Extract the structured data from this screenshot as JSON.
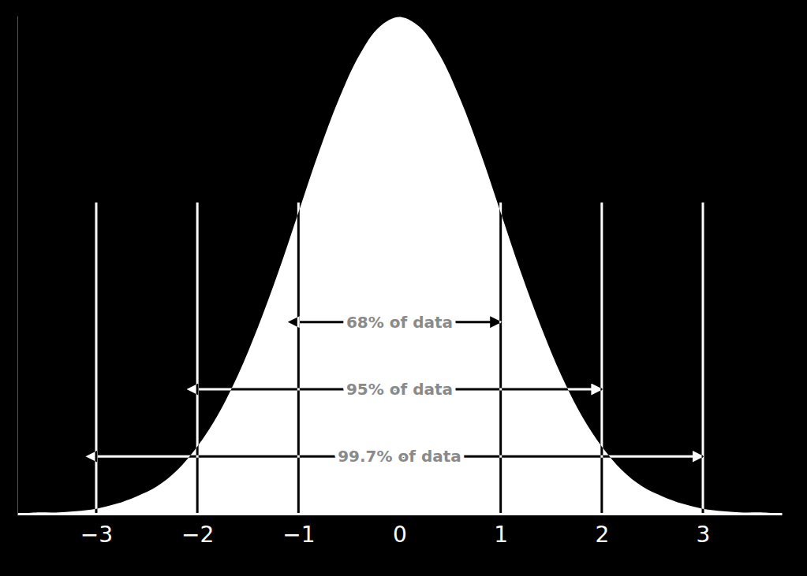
{
  "chart_data": {
    "type": "area",
    "x": [
      -3.8,
      -3.6,
      -3.4,
      -3.2,
      -3.0,
      -2.8,
      -2.6,
      -2.4,
      -2.2,
      -2.0,
      -1.8,
      -1.6,
      -1.4,
      -1.2,
      -1.0,
      -0.8,
      -0.6,
      -0.4,
      -0.2,
      0,
      0.2,
      0.4,
      0.6,
      0.8,
      1.0,
      1.2,
      1.4,
      1.6,
      1.8,
      2.0,
      2.2,
      2.4,
      2.6,
      2.8,
      3.0,
      3.2,
      3.4,
      3.6,
      3.8
    ],
    "values": [
      0.0,
      0.001,
      0.001,
      0.002,
      0.004,
      0.008,
      0.014,
      0.022,
      0.035,
      0.054,
      0.079,
      0.111,
      0.15,
      0.194,
      0.242,
      0.29,
      0.333,
      0.368,
      0.391,
      0.399,
      0.391,
      0.368,
      0.333,
      0.29,
      0.242,
      0.194,
      0.15,
      0.111,
      0.079,
      0.054,
      0.035,
      0.022,
      0.014,
      0.008,
      0.004,
      0.002,
      0.001,
      0.001,
      0.0
    ],
    "color": "#ffffff",
    "xlim": [
      -3.78,
      3.78
    ],
    "xticks": [
      {
        "value": -3,
        "label": "−3"
      },
      {
        "value": -2,
        "label": "−2"
      },
      {
        "value": -1,
        "label": "−1"
      },
      0,
      1,
      2,
      3
    ],
    "ylim": [
      0,
      0.4
    ],
    "tick_labels": "x",
    "reference_lines": {
      "x": [
        -3,
        -2,
        -1,
        1,
        2,
        3
      ],
      "y_top": 0.25
    },
    "annotations": [
      {
        "text": "68% of data",
        "x1": -1,
        "x2": 1,
        "y": 0.154
      },
      {
        "text": "95% of data",
        "x1": -2,
        "x2": 2,
        "y": 0.1
      },
      {
        "text": "99.7% of data",
        "x1": -3,
        "x2": 3,
        "y": 0.046
      }
    ]
  }
}
